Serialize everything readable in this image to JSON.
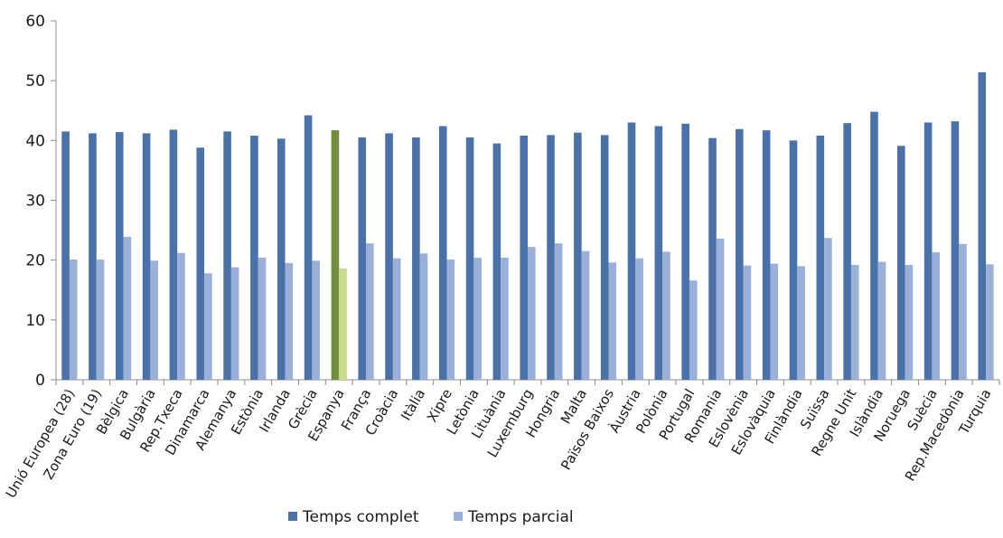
{
  "chart_data": {
    "type": "bar",
    "ylim": [
      0,
      60
    ],
    "yticks": [
      0,
      10,
      20,
      30,
      40,
      50,
      60
    ],
    "grid": false,
    "legend_position": "bottom",
    "categories": [
      "Unió Europea (28)",
      "Zona Euro (19)",
      "Bèlgica",
      "Bulgària",
      "Rep.Txeca",
      "Dinamarca",
      "Alemanya",
      "Estònia",
      "Irlanda",
      "Grècia",
      "Espanya",
      "França",
      "Croàcia",
      "Itàlia",
      "Xipre",
      "Letònia",
      "Lituània",
      "Luxemburg",
      "Hongria",
      "Malta",
      "Països Baixos",
      "Àustria",
      "Polònia",
      "Portugal",
      "Romania",
      "Eslovènia",
      "Eslovàquia",
      "Finlàndia",
      "Suïssa",
      "Regne Unit",
      "Islàndia",
      "Noruega",
      "Suècia",
      "Rep.Macedònia",
      "Turquia"
    ],
    "series": [
      {
        "name": "Temps complet",
        "color": "#4a72a8",
        "values": [
          41.5,
          41.2,
          41.4,
          41.2,
          41.8,
          38.8,
          41.5,
          40.8,
          40.3,
          44.2,
          41.7,
          40.5,
          41.2,
          40.5,
          42.4,
          40.5,
          39.5,
          40.8,
          40.9,
          41.3,
          40.9,
          43.0,
          42.4,
          42.8,
          40.4,
          41.9,
          41.7,
          40.0,
          40.8,
          42.9,
          44.8,
          39.1,
          43.0,
          43.2,
          51.4
        ]
      },
      {
        "name": "Temps parcial",
        "color": "#9bb0d8",
        "values": [
          20.1,
          20.1,
          23.9,
          19.9,
          21.2,
          17.8,
          18.8,
          20.4,
          19.5,
          19.9,
          18.6,
          22.8,
          20.3,
          21.1,
          20.1,
          20.4,
          20.4,
          22.2,
          22.8,
          21.5,
          19.6,
          20.3,
          21.4,
          16.6,
          23.6,
          19.1,
          19.4,
          19.0,
          23.7,
          19.2,
          19.7,
          19.2,
          21.3,
          22.7,
          19.3
        ]
      }
    ],
    "highlight": {
      "category": "Espanya",
      "colors": [
        "#6f8f3a",
        "#c9db8e"
      ]
    }
  }
}
